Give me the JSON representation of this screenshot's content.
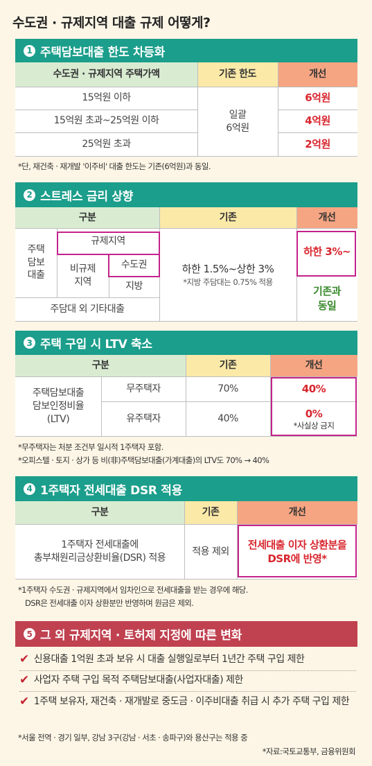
{
  "title": "수도권 · 규제지역 대출 규제 어떻게?",
  "s1": {
    "num": "1",
    "title": "주택담보대출 한도 차등화",
    "headers": [
      "수도권 · 규제지역 주택가액",
      "기존 한도",
      "개선"
    ],
    "rows": [
      {
        "range": "15억원 이하",
        "new": "6억원"
      },
      {
        "range": "15억원 초과~25억원 이하",
        "new": "4억원"
      },
      {
        "range": "25억원 초과",
        "new": "2억원"
      }
    ],
    "existing_line1": "일괄",
    "existing_line2": "6억원",
    "note": "*단, 재건축 · 재개발 '이주비' 대출 한도는 기존(6억원)과 동일."
  },
  "s2": {
    "num": "2",
    "title": "스트레스 금리 상향",
    "headers": [
      "구분",
      "기존",
      "개선"
    ],
    "mortgage_l1": "주택",
    "mortgage_l2": "담보",
    "mortgage_l3": "대출",
    "regulated": "규제지역",
    "nonregulated_l1": "비규제",
    "nonregulated_l2": "지역",
    "capital": "수도권",
    "local": "지방",
    "other": "주담대 외 기타대출",
    "existing_main": "하한 1.5%~상한 3%",
    "existing_sub": "*지방 주담대는 0.75% 적용",
    "new_main": "하한 3%~",
    "new_same_l1": "기존과",
    "new_same_l2": "동일"
  },
  "s3": {
    "num": "3",
    "title": "주택 구입 시 LTV 축소",
    "headers": [
      "구분",
      "기존",
      "개선"
    ],
    "label_l1": "주택담보대출",
    "label_l2": "담보인정비율",
    "label_l3": "(LTV)",
    "rows": [
      {
        "type": "무주택자",
        "existing": "70%",
        "new": "40%",
        "sub": ""
      },
      {
        "type": "유주택자",
        "existing": "40%",
        "new": "0%",
        "sub": "*사실상 금지"
      }
    ],
    "note1": "*무주택자는 처분 조건부 일시적 1주택자 포함.",
    "note2": "*오피스텔 · 토지 · 상가 등 비(非)주택담보대출(가계대출)의 LTV도 70% → 40%"
  },
  "s4": {
    "num": "4",
    "title": "1주택자 전세대출 DSR 적용",
    "headers": [
      "구분",
      "기존",
      "개선"
    ],
    "label_l1": "1주택자 전세대출에",
    "label_l2": "총부채원리금상환비율(DSR) 적용",
    "existing": "적용 제외",
    "new_l1": "전세대출 이자 상환분을",
    "new_l2": "DSR에 반영*",
    "note1": "*1주택자 수도권 · 규제지역에서 임차인으로 전세대출을 받는 경우에 해당.",
    "note2": "DSR은 전세대출 이자 상환분만 반영하며 원금은 제외."
  },
  "s5": {
    "num": "5",
    "title": "그 외 규제지역 · 토허제 지정에 따른 변화",
    "items": [
      "신용대출 1억원 초과 보유 시 대출 실행일로부터 1년간 주택 구입 제한",
      "사업자 주택 구입 목적 주택담보대출(사업자대출) 제한",
      "1주택 보유자, 재건축 · 재개발로 중도금 · 이주비대출 취급 시 추가 주택 구입 제한"
    ],
    "note": "*서울 전역 · 경기 일부, 강남 3구(강남 · 서초 · 송파구)와 용산구는 적용 중"
  },
  "source": "*자료:국토교통부, 금융위원회",
  "colors": {
    "teal": "#1b9e8b",
    "crimson": "#c04150",
    "green_header": "#d9ecd2",
    "yellow_header": "#fbe9a8",
    "orange_header": "#f6a582",
    "red_text": "#d8262e",
    "green_text": "#3a8a2e",
    "magenta": "#c3228a",
    "background": "#fdf6e6"
  }
}
